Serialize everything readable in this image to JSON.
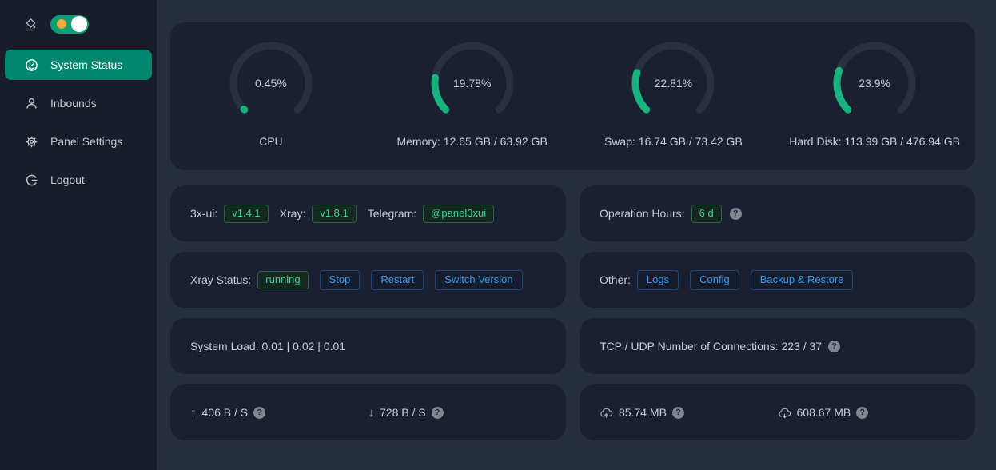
{
  "sidebar": {
    "items": [
      {
        "label": "System Status"
      },
      {
        "label": "Inbounds"
      },
      {
        "label": "Panel Settings"
      },
      {
        "label": "Logout"
      }
    ],
    "theme_toggle_state": "on"
  },
  "chart_data": {
    "type": "gauge",
    "series": [
      {
        "name": "CPU",
        "percent": 0.45
      },
      {
        "name": "Memory",
        "percent": 19.78
      },
      {
        "name": "Swap",
        "percent": 22.81
      },
      {
        "name": "Hard Disk",
        "percent": 23.9
      }
    ]
  },
  "gauges": [
    {
      "value": 0.45,
      "percent_text": "0.45%",
      "label": "CPU"
    },
    {
      "value": 19.78,
      "percent_text": "19.78%",
      "label": "Memory: 12.65 GB / 63.92 GB"
    },
    {
      "value": 22.81,
      "percent_text": "22.81%",
      "label": "Swap: 16.74 GB / 73.42 GB"
    },
    {
      "value": 23.9,
      "percent_text": "23.9%",
      "label": "Hard Disk: 113.99 GB / 476.94 GB"
    }
  ],
  "version_row": {
    "xui_label": "3x-ui:",
    "xui_version": "v1.4.1",
    "xray_label": "Xray:",
    "xray_version": "v1.8.1",
    "telegram_label": "Telegram:",
    "telegram_handle": "@panel3xui"
  },
  "operation_row": {
    "label": "Operation Hours:",
    "value": "6 d"
  },
  "xray_status_row": {
    "label": "Xray Status:",
    "status": "running",
    "stop_button": "Stop",
    "restart_button": "Restart",
    "switch_button": "Switch Version"
  },
  "other_row": {
    "label": "Other:",
    "logs_button": "Logs",
    "config_button": "Config",
    "backup_button": "Backup & Restore"
  },
  "system_load_row": {
    "text": "System Load: 0.01 | 0.02 | 0.01"
  },
  "connections_row": {
    "text": "TCP / UDP Number of Connections: 223 / 37"
  },
  "speed_row": {
    "upload": "406 B / S",
    "download": "728 B / S"
  },
  "traffic_row": {
    "sent": "85.74 MB",
    "received": "608.67 MB"
  },
  "colors": {
    "accent_green": "#18b27d",
    "menu_active_green": "#008770",
    "link_blue": "#3c9ae8",
    "card_bg": "#1a2032",
    "page_bg": "#272e3d",
    "sidebar_bg": "#171d29"
  }
}
